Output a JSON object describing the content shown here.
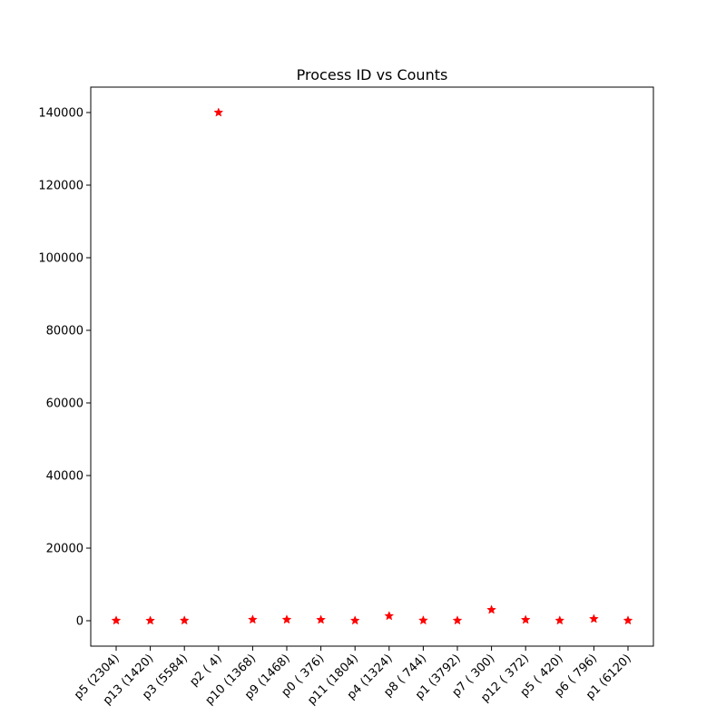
{
  "chart_data": {
    "type": "scatter",
    "title": "Process ID vs Counts",
    "xlabel": "",
    "ylabel": "",
    "marker": "star",
    "marker_color": "#ff0000",
    "categories": [
      "p5 (2304)",
      "p13 (1420)",
      "p3 (5584)",
      "p2 ( 4)",
      "p10 (1368)",
      "p9 (1468)",
      "p0 ( 376)",
      "p11 (1804)",
      "p4 (1324)",
      "p8 ( 744)",
      "p1 (3792)",
      "p7 ( 300)",
      "p12 ( 372)",
      "p5 ( 420)",
      "p6 ( 796)",
      "p1 (6120)"
    ],
    "values": [
      50,
      30,
      60,
      140000,
      300,
      300,
      250,
      50,
      1300,
      80,
      60,
      3000,
      250,
      60,
      500,
      60
    ],
    "ylim": [
      -7000,
      147000
    ],
    "yticks": [
      0,
      20000,
      40000,
      60000,
      80000,
      100000,
      120000,
      140000
    ],
    "ytick_labels": [
      "0",
      "20000",
      "40000",
      "60000",
      "80000",
      "100000",
      "120000",
      "140000"
    ],
    "grid": false,
    "legend": "none"
  }
}
